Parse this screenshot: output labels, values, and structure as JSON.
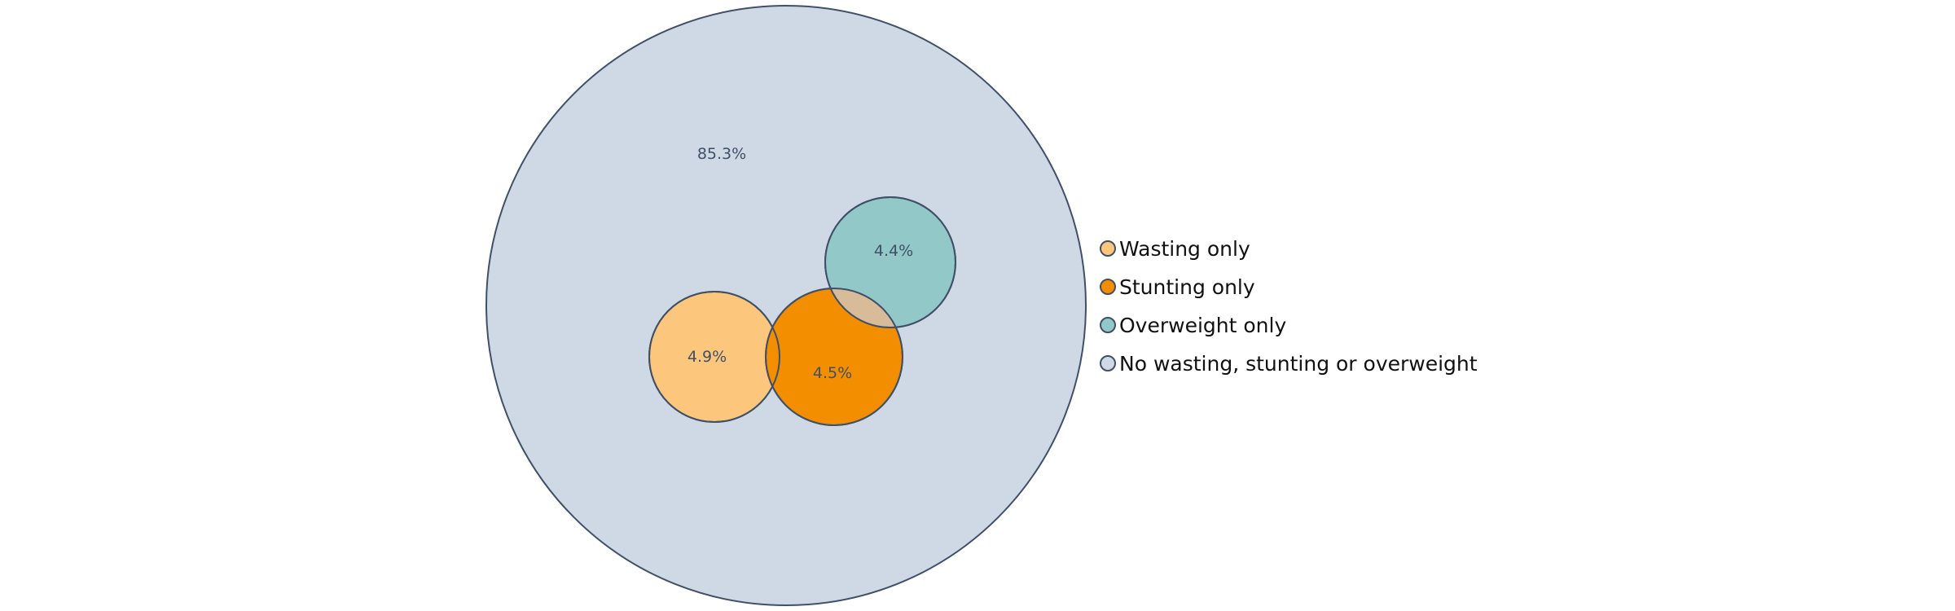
{
  "chart_data": {
    "type": "venn",
    "title": "",
    "sets": [
      {
        "key": "none",
        "name": "No wasting, stunting or overweight",
        "value_label": "85.3%",
        "value": 85.3,
        "color": "#cfd9e5"
      },
      {
        "key": "wasting",
        "name": "Wasting only",
        "value_label": "4.9%",
        "value": 4.9,
        "color": "#fcc77c"
      },
      {
        "key": "stunting",
        "name": "Stunting only",
        "value_label": "4.5%",
        "value": 4.5,
        "color": "#f28e00"
      },
      {
        "key": "overweight",
        "name": "Overweight only",
        "value_label": "4.4%",
        "value": 4.4,
        "color": "#93c8c8"
      }
    ],
    "overlap_color": "#d8bb99",
    "outline_color": "#3f5068",
    "legend": {
      "position": "right",
      "order": [
        "wasting",
        "stunting",
        "overweight",
        "none"
      ]
    }
  }
}
